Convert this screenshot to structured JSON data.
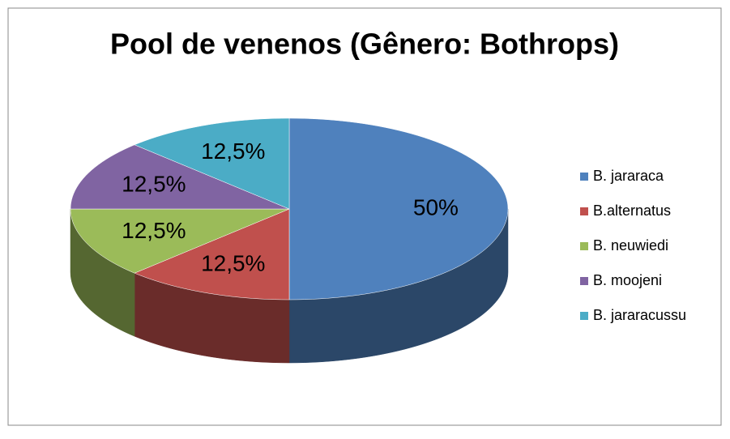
{
  "chart_data": {
    "type": "pie3d",
    "title": "Pool de venenos (Gênero: Bothrops)",
    "categories": [
      "B. jararaca",
      "B.alternatus",
      "B. neuwiedi",
      "B. moojeni",
      "B. jararacussu"
    ],
    "values": [
      50,
      12.5,
      12.5,
      12.5,
      12.5
    ],
    "value_labels": [
      "50%",
      "12,5%",
      "12,5%",
      "12,5%",
      "12,5%"
    ],
    "colors": [
      "#4f81bd",
      "#c0504d",
      "#9bbb59",
      "#8064a2",
      "#4bacc6"
    ],
    "legend": "right"
  }
}
